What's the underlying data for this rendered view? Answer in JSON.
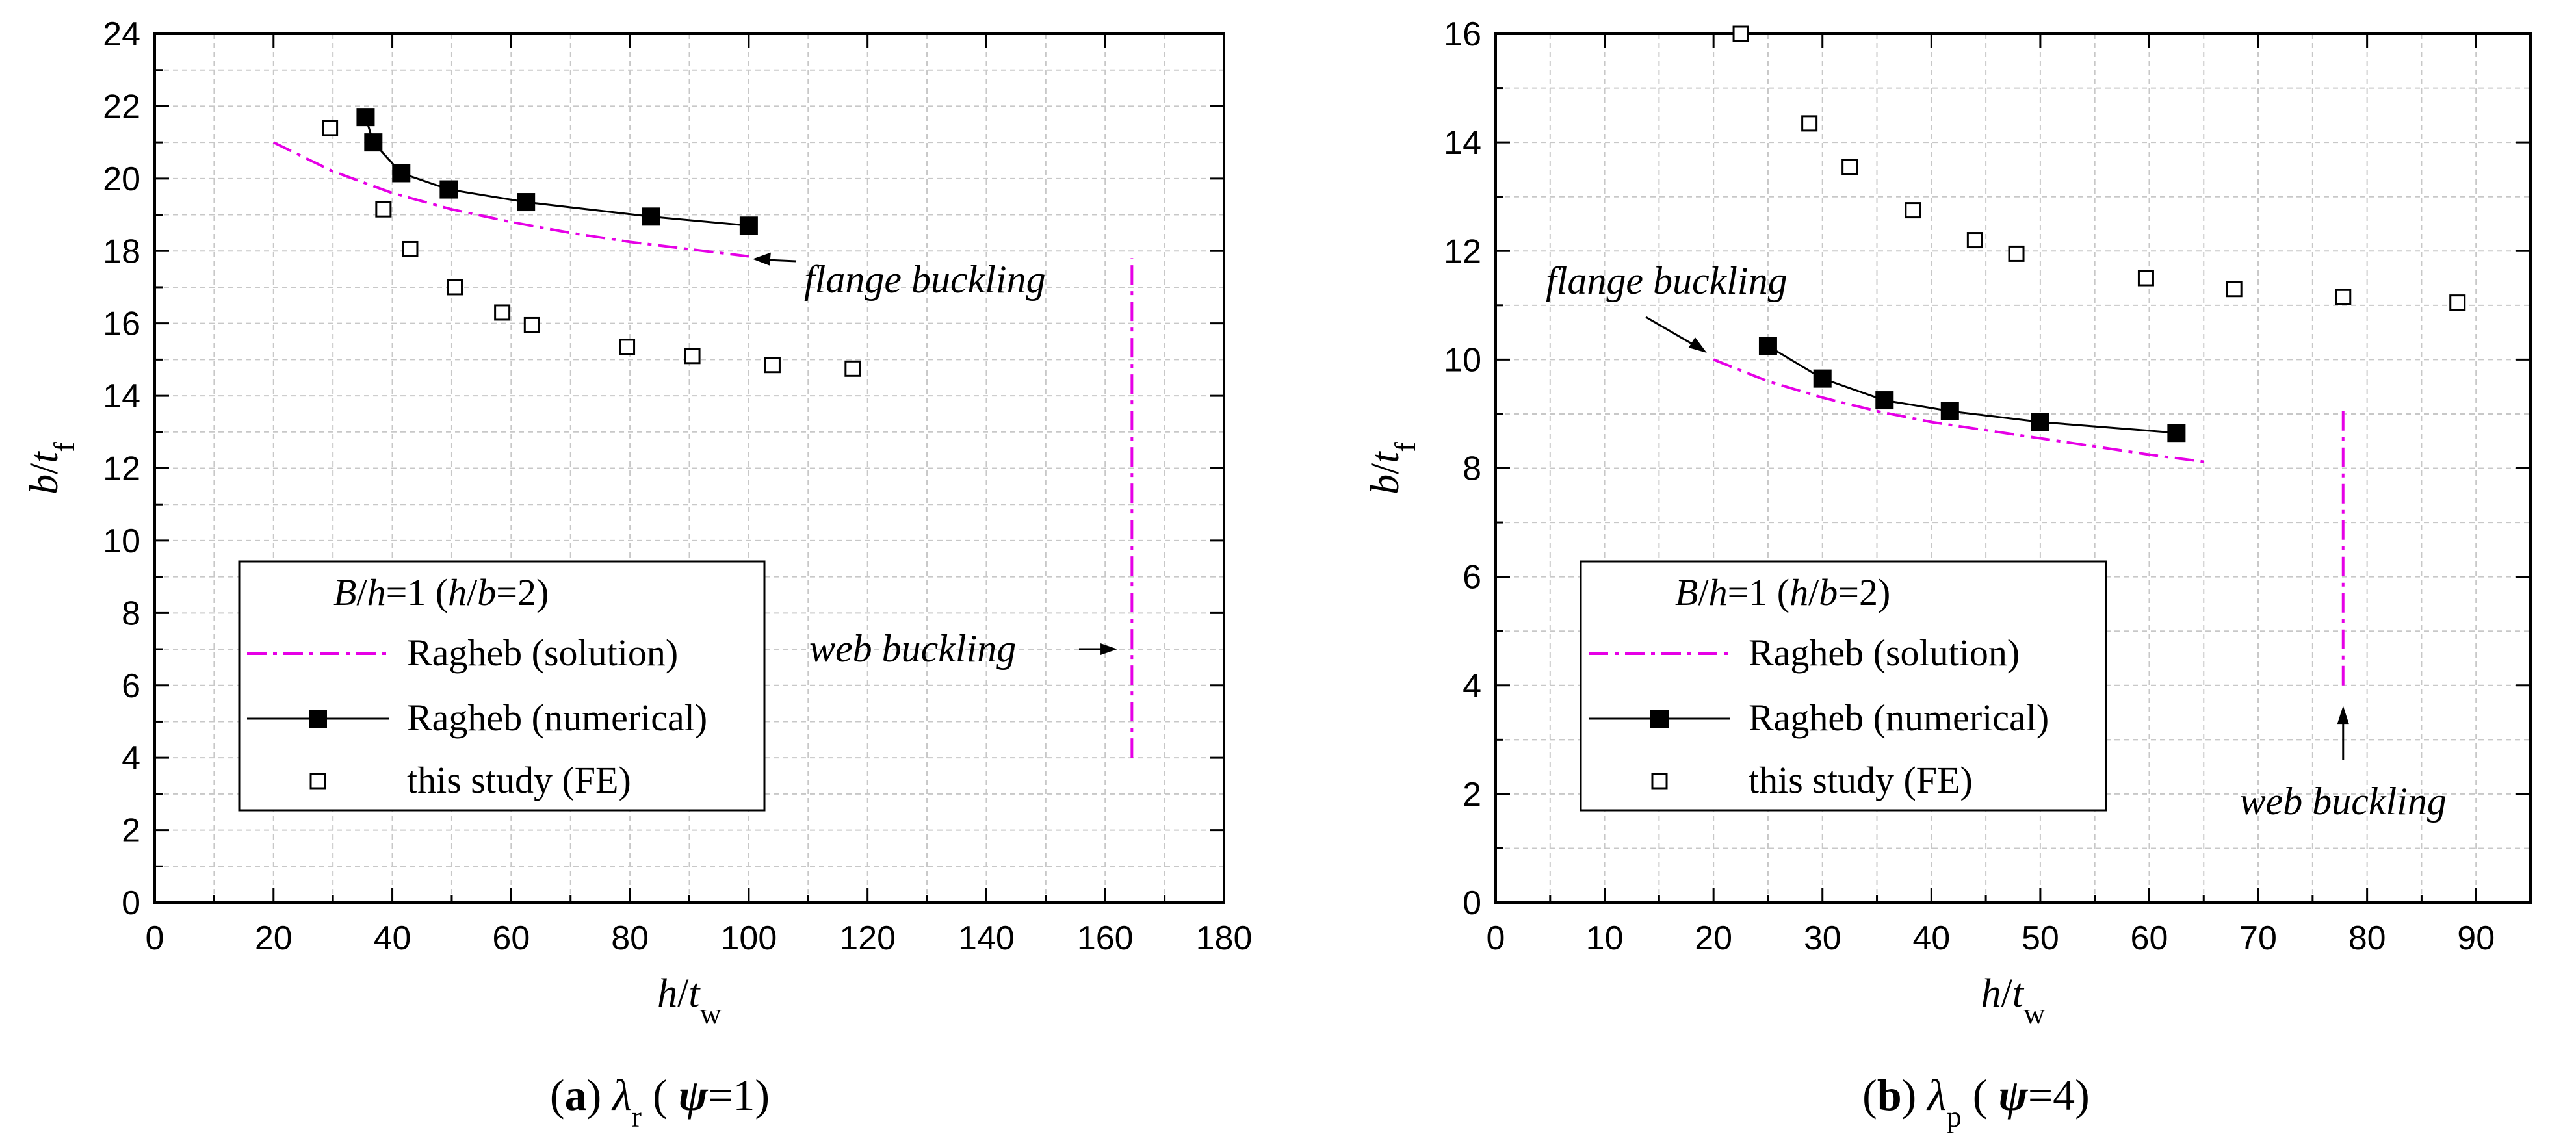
{
  "colors": {
    "solution": "#e600e6",
    "numerical": "#000000",
    "fe": "#000000",
    "grid": "#c8c8c8"
  },
  "chart_data": [
    {
      "panel": "a",
      "type": "line",
      "caption": {
        "label": "(a)",
        "text": "λr (ψ=1)"
      },
      "xlabel": "h/tw",
      "ylabel": "b/tf",
      "xlim": [
        0,
        180
      ],
      "ylim": [
        0,
        24
      ],
      "xticks": [
        0,
        20,
        40,
        60,
        80,
        100,
        120,
        140,
        160,
        180
      ],
      "yticks": [
        0,
        2,
        4,
        6,
        8,
        10,
        12,
        14,
        16,
        18,
        20,
        22,
        24
      ],
      "grid": true,
      "legend": {
        "title": "B/h=1  (h/b=2)",
        "placement": "lower-left",
        "entries": [
          "Ragheb (solution)",
          "Ragheb (numerical)",
          "this study (FE)"
        ]
      },
      "series": [
        {
          "name": "Ragheb (solution)",
          "style": "dash-dot",
          "x": [
            20,
            30,
            40,
            50,
            60,
            70,
            80,
            90,
            100
          ],
          "y": [
            21.0,
            20.2,
            19.6,
            19.15,
            18.8,
            18.5,
            18.25,
            18.05,
            17.85
          ]
        },
        {
          "name": "Ragheb (numerical)",
          "style": "line-filled-square",
          "x": [
            35.5,
            36.8,
            41.5,
            49.5,
            62.5,
            83.5,
            100
          ],
          "y": [
            21.7,
            21.0,
            20.15,
            19.7,
            19.35,
            18.95,
            18.7
          ]
        },
        {
          "name": "this study (FE)",
          "style": "open-square",
          "x": [
            29.5,
            38.5,
            43,
            50.5,
            58.5,
            63.5,
            79.5,
            90.5,
            104,
            117.5
          ],
          "y": [
            21.4,
            19.15,
            18.05,
            17.0,
            16.3,
            15.95,
            15.35,
            15.1,
            14.85,
            14.75
          ]
        }
      ],
      "web_buckling_line": {
        "x": 164.5,
        "y": [
          4,
          17.8
        ]
      },
      "annotations": [
        {
          "text": "flange buckling",
          "point": [
            100,
            17.85
          ]
        },
        {
          "text": "web buckling",
          "point": [
            162.5,
            7.0
          ]
        }
      ]
    },
    {
      "panel": "b",
      "type": "line",
      "caption": {
        "label": "(b)",
        "text": "λp (ψ=4)"
      },
      "xlabel": "h/tw",
      "ylabel": "b/tf",
      "xlim": [
        0,
        95
      ],
      "ylim": [
        0,
        16
      ],
      "xticks": [
        0,
        10,
        20,
        30,
        40,
        50,
        60,
        70,
        80,
        90
      ],
      "yticks": [
        0,
        2,
        4,
        6,
        8,
        10,
        12,
        14,
        16
      ],
      "grid": true,
      "legend": {
        "title": "B/h=1  (h/b=2)",
        "placement": "lower-left",
        "entries": [
          "Ragheb (solution)",
          "Ragheb (numerical)",
          "this study (FE)"
        ]
      },
      "series": [
        {
          "name": "Ragheb (solution)",
          "style": "dash-dot",
          "x": [
            20,
            25,
            30,
            35,
            40,
            45,
            50,
            55,
            60,
            65
          ],
          "y": [
            10.0,
            9.6,
            9.3,
            9.05,
            8.85,
            8.7,
            8.55,
            8.4,
            8.25,
            8.12
          ]
        },
        {
          "name": "Ragheb (numerical)",
          "style": "line-filled-square",
          "x": [
            25,
            30,
            35.7,
            41.7,
            50,
            62.5
          ],
          "y": [
            10.25,
            9.65,
            9.25,
            9.05,
            8.85,
            8.65
          ]
        },
        {
          "name": "this study (FE)",
          "style": "open-square",
          "x": [
            22.5,
            28.8,
            32.5,
            38.3,
            44,
            47.8,
            59.7,
            67.8,
            77.8,
            88.3
          ],
          "y": [
            16.0,
            14.35,
            13.55,
            12.75,
            12.2,
            11.95,
            11.5,
            11.3,
            11.15,
            11.05
          ]
        }
      ],
      "web_buckling_line": {
        "x": 77.8,
        "y": [
          4,
          9.05
        ]
      },
      "annotations": [
        {
          "text": "flange buckling",
          "point": [
            19.5,
            10.1
          ]
        },
        {
          "text": "web buckling",
          "point": [
            77.8,
            3.6
          ]
        }
      ]
    }
  ]
}
